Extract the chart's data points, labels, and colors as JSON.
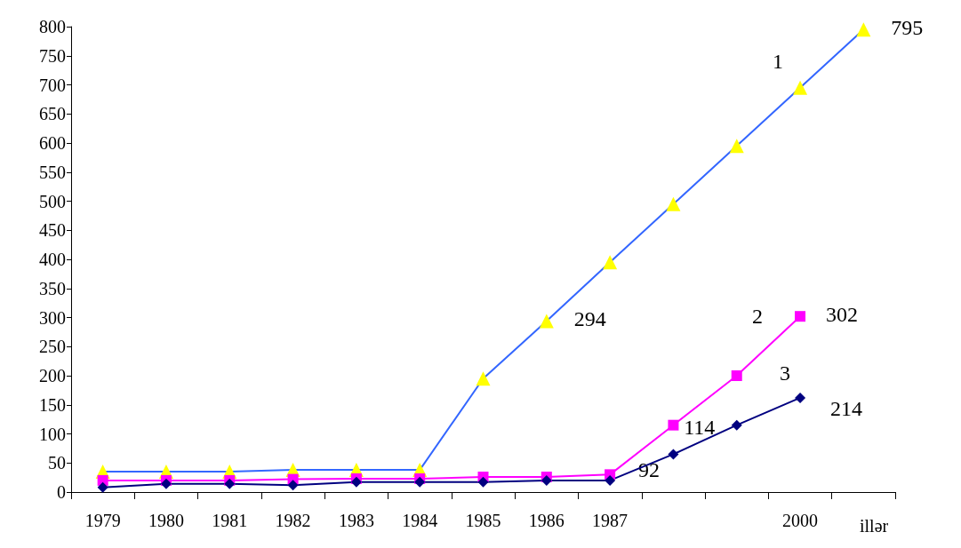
{
  "chart_data": {
    "type": "line",
    "xlabel": "illər",
    "categories": [
      "1979",
      "1980",
      "1981",
      "1982",
      "1983",
      "1984",
      "1985",
      "1986",
      "1987",
      null,
      null,
      "2000",
      null
    ],
    "ylim": [
      0,
      800
    ],
    "yticks": [
      0,
      50,
      100,
      150,
      200,
      250,
      300,
      350,
      400,
      450,
      500,
      550,
      600,
      650,
      700,
      750,
      800
    ],
    "grid": false,
    "legend": false,
    "annotations": [
      "92",
      "114",
      "214"
    ],
    "series": [
      {
        "name": "1",
        "color": "#3366ff",
        "colors": [
          "#ffff00",
          "#ffff00",
          "#ffff00",
          "#ffff00",
          "#ffff00",
          "#ffff00",
          "#ffff00",
          "#ffff00",
          "#ffff00",
          "#ffff00",
          "#ffff00",
          "#ffff00",
          "#ffff00"
        ],
        "marker": "triangle",
        "values": [
          35,
          35,
          35,
          38,
          38,
          38,
          195,
          294,
          395,
          495,
          595,
          695,
          795
        ],
        "value_labels": [
          null,
          null,
          null,
          null,
          null,
          null,
          null,
          "294",
          null,
          null,
          null,
          null,
          "795"
        ]
      },
      {
        "name": "2",
        "color": "#ff00ff",
        "marker": "square",
        "values": [
          20,
          20,
          20,
          22,
          23,
          23,
          26,
          26,
          30,
          115,
          200,
          302,
          null
        ],
        "value_labels": [
          null,
          null,
          null,
          null,
          null,
          null,
          null,
          null,
          null,
          null,
          null,
          "302",
          null
        ]
      },
      {
        "name": "3",
        "color": "#000080",
        "marker": "diamond",
        "values": [
          8,
          14,
          14,
          12,
          17,
          17,
          17,
          20,
          20,
          65,
          115,
          162,
          null
        ]
      }
    ]
  }
}
